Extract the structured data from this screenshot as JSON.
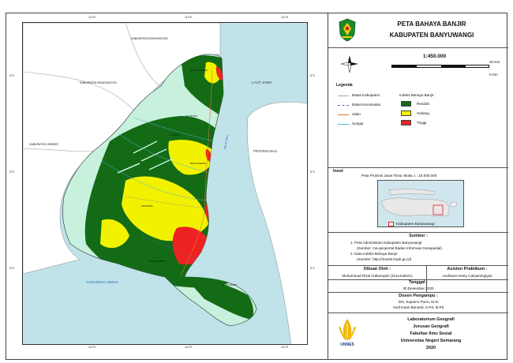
{
  "map": {
    "labels": {
      "bondowoso_top": "KABUPATEN BONDOWOSO",
      "bondowoso_left": "KABUPATEN BONDOWOSO",
      "jember": "KABUPATEN JEMBER",
      "laut_jawa": "LAUT JAWA",
      "provinsi_bali": "PROVINSI BALI",
      "selat_bali": "SELAT BALI",
      "samudera_hindia": "SAMUDERA HINDIA",
      "place_1": "WONGSOREJO",
      "place_2": "KALIPURO",
      "place_3": "GLAGAH",
      "place_4": "BANYUWANGI",
      "place_5": "GENTENG",
      "place_6": "PURWOHARJO",
      "place_7": "TEGALDLIMO"
    },
    "ticks": {
      "top": [
        "114°E",
        "114°E",
        "114°E"
      ],
      "bottom": [
        "114°E",
        "114°E",
        "114°E"
      ],
      "left": [
        "8°S",
        "8°S",
        "8°S"
      ],
      "right": [
        "8°S",
        "8°S",
        "8°S"
      ]
    },
    "colors": {
      "sea": "#bfe3e9",
      "land": "#c7f0dd",
      "low": "#136b16",
      "medium": "#f2f200",
      "high": "#ee2222"
    }
  },
  "panel": {
    "title_line1": "PETA BAHAYA BANJIR",
    "title_line2": "KABUPATEN BANYUWANGI",
    "logo_icon": "banyuwangi-emblem-icon",
    "north_icon": "north-arrow-icon",
    "scale": "1:450.000",
    "scale_right_top": "20 Km",
    "scale_right_bottom": "0 Km",
    "legend_title": "Legenda",
    "legend_lines": [
      "Batas Kabupaten",
      "Batas Kecamatan",
      "Jalan",
      "Sungai"
    ],
    "index_title": "Indeks Bahaya Banjir :",
    "index_items": [
      "Rendah",
      "Sedang",
      "Tinggi"
    ],
    "inset_title": "Inset",
    "inset_caption": "Peta Provinsi Jawa Timur Skala 1 : 10.000.000",
    "inset_legend": "Kabupaten Banyuwangi",
    "sumber_title": "Sumber :",
    "sumber_lines": [
      "1. Peta Administrasi Kabupaten Banyuwangi",
      "(Sumber: Ina-geoportal Badan Informasi Geospasial)",
      "2. Data Indeks Bahaya Banjir",
      "(Sumber: http://inarisk.bnpb.go.id)"
    ],
    "dibuat_title": "Dibuat Oleh :",
    "dibuat_value": "Muhammad Rizal Ardiansyah (3211418021)",
    "asisten_title": "Asisten Praktikum :",
    "asisten_value": "Andriana Hesty Cahyaningtyas",
    "tanggal_title": "Tanggal :",
    "tanggal_value": "30 Desember 2020",
    "dosen_title": "Dosen Pengampu :",
    "dosen_lines": [
      "Drs. Saptono Putro, M.Si",
      "Andi Irwan Benardi, S.Pd, M.Pd"
    ],
    "lab_lines": [
      "Laboratorium Geografi",
      "Jurusan Geografi",
      "Fakultas Ilmu Sosial",
      "Universitas Negeri Semarang",
      "2020"
    ],
    "unnes_logo_text": "UNNES"
  }
}
